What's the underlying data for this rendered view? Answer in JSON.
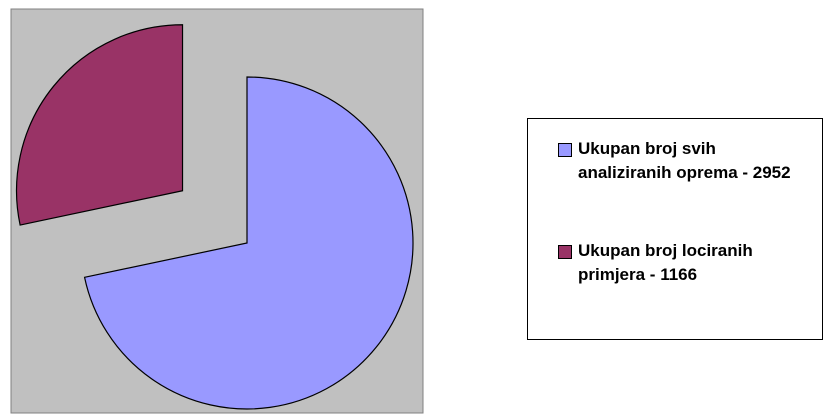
{
  "chart_data": {
    "type": "pie",
    "series": [
      {
        "name": "Ukupan broj svih analiziranih oprema - 2952",
        "color": "#9999ff",
        "values": [
          2952
        ]
      },
      {
        "name": "Ukupan broj lociranih primjera - 1166",
        "color": "#993366",
        "values": [
          1166
        ]
      }
    ],
    "exploded": true
  }
}
